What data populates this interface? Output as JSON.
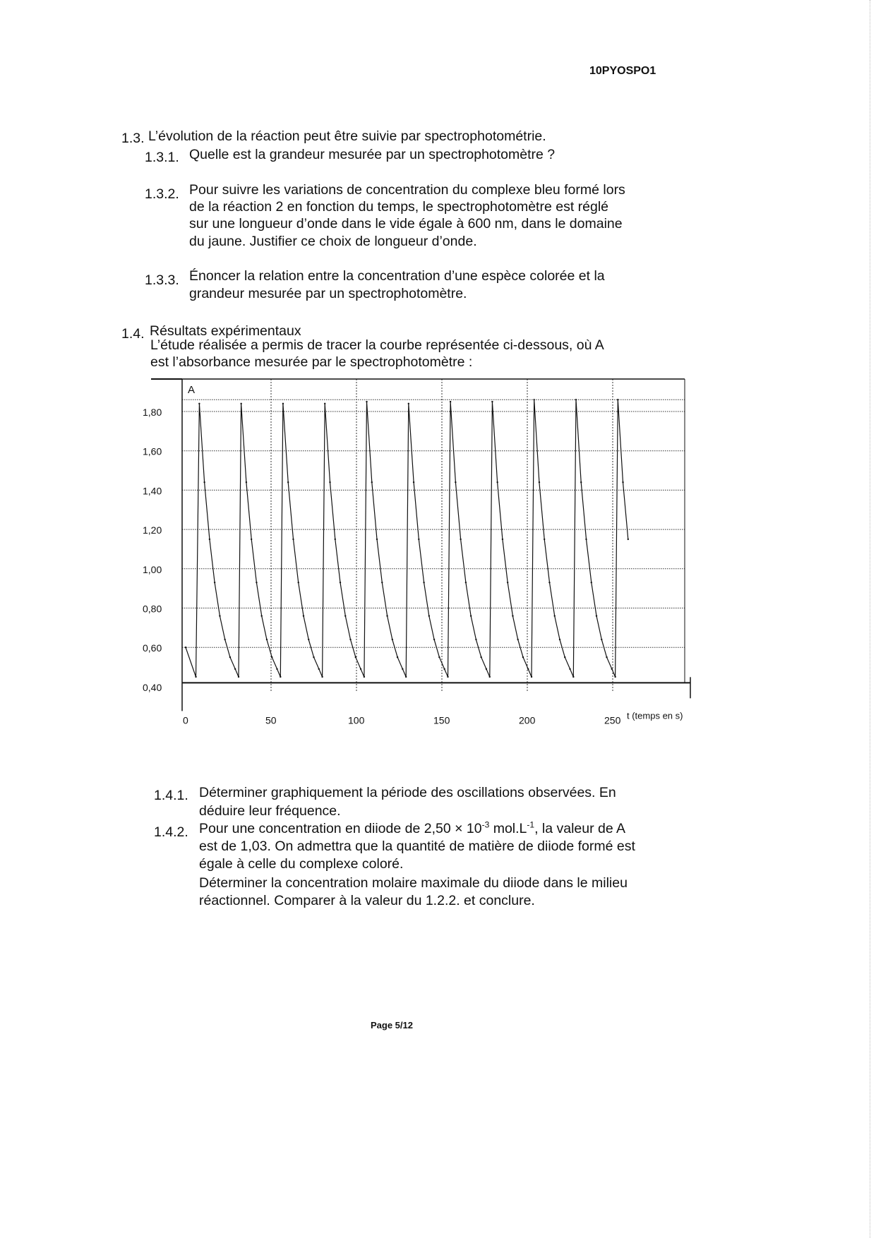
{
  "header": {
    "code": "10PYOSPO1"
  },
  "footer": {
    "page": "Page 5/12"
  },
  "sections": {
    "s13": {
      "num": "1.3.",
      "text": "L’évolution de la réaction peut être suivie par spectrophotométrie."
    },
    "s131": {
      "num": "1.3.1.",
      "lines": [
        "Quelle est la grandeur mesurée par un spectrophotomètre ?"
      ]
    },
    "s132": {
      "num": "1.3.2.",
      "lines": [
        "Pour suivre les variations de concentration du complexe bleu formé lors",
        "de la réaction 2 en fonction du temps, le spectrophotomètre est réglé",
        "sur une longueur d’onde dans le vide égale à 600 nm, dans le domaine",
        "du jaune. Justifier ce choix de longueur d’onde."
      ]
    },
    "s133": {
      "num": "1.3.3.",
      "lines": [
        "Énoncer la relation entre la concentration d’une espèce colorée et la",
        "grandeur mesurée par un spectrophotomètre."
      ]
    },
    "s14": {
      "num": "1.4.",
      "text": "Résultats expérimentaux",
      "lines": [
        "L’étude réalisée a permis de tracer la courbe représentée ci-dessous, où A",
        "est l’absorbance mesurée par le spectrophotomètre :"
      ]
    },
    "s141": {
      "num": "1.4.1.",
      "lines": [
        "Déterminer graphiquement la période des oscillations observées. En",
        "déduire leur fréquence."
      ]
    },
    "s142": {
      "num": "1.4.2.",
      "line1": {
        "a": "Pour une concentration en diiode de 2,50 × 10",
        "sup1": "-3",
        "b": " mol.L",
        "sup2": "-1",
        "c": ", la valeur de A"
      },
      "lines": [
        "est de 1,03. On admettra que la quantité de matière de diiode formé est",
        "égale à celle du complexe coloré.",
        "Déterminer la concentration molaire maximale du diiode dans le milieu",
        "réactionnel. Comparer à la valeur du 1.2.2. et conclure."
      ]
    }
  },
  "chart_data": {
    "type": "line",
    "title": "",
    "xlabel": "t (temps en s)",
    "ylabel": "A",
    "xlim": [
      0,
      292
    ],
    "ylim": [
      0.38,
      1.965
    ],
    "xticks": [
      0,
      50,
      100,
      150,
      200,
      250
    ],
    "xtick_labels": [
      "0",
      "50",
      "100",
      "150",
      "200",
      "250"
    ],
    "yticks": [
      0.4,
      0.6,
      0.8,
      1.0,
      1.2,
      1.4,
      1.6,
      1.8
    ],
    "ytick_labels": [
      "0,40",
      "0,60",
      "0,80",
      "1,00",
      "1,20",
      "1,40",
      "1,60",
      "1,80"
    ],
    "grid": "dotted",
    "line_color": "#111111",
    "points": [
      [
        0,
        0.6
      ],
      [
        6,
        0.45
      ],
      [
        8,
        1.84
      ],
      [
        11,
        1.44
      ],
      [
        14,
        1.15
      ],
      [
        17,
        0.93
      ],
      [
        20,
        0.76
      ],
      [
        23,
        0.64
      ],
      [
        26,
        0.55
      ],
      [
        29,
        0.49
      ],
      [
        31,
        0.45
      ],
      [
        32.5,
        1.84
      ],
      [
        35.5,
        1.44
      ],
      [
        38.5,
        1.15
      ],
      [
        41.5,
        0.93
      ],
      [
        44.5,
        0.76
      ],
      [
        47.5,
        0.64
      ],
      [
        50.5,
        0.55
      ],
      [
        53.5,
        0.49
      ],
      [
        55.5,
        0.45
      ],
      [
        57,
        1.84
      ],
      [
        60,
        1.44
      ],
      [
        63,
        1.15
      ],
      [
        66,
        0.93
      ],
      [
        69,
        0.76
      ],
      [
        72,
        0.64
      ],
      [
        75,
        0.55
      ],
      [
        78,
        0.49
      ],
      [
        80,
        0.45
      ],
      [
        81.5,
        1.84
      ],
      [
        84.5,
        1.44
      ],
      [
        87.5,
        1.15
      ],
      [
        90.5,
        0.93
      ],
      [
        93.5,
        0.76
      ],
      [
        96.5,
        0.64
      ],
      [
        99.5,
        0.55
      ],
      [
        102.5,
        0.49
      ],
      [
        104.5,
        0.45
      ],
      [
        106,
        1.85
      ],
      [
        109,
        1.44
      ],
      [
        112,
        1.15
      ],
      [
        115,
        0.93
      ],
      [
        118,
        0.76
      ],
      [
        121,
        0.64
      ],
      [
        124,
        0.55
      ],
      [
        127,
        0.49
      ],
      [
        129,
        0.45
      ],
      [
        130.5,
        1.84
      ],
      [
        133.5,
        1.44
      ],
      [
        136.5,
        1.15
      ],
      [
        139.5,
        0.93
      ],
      [
        142.5,
        0.76
      ],
      [
        145.5,
        0.64
      ],
      [
        148.5,
        0.55
      ],
      [
        151.5,
        0.49
      ],
      [
        153.5,
        0.45
      ],
      [
        155,
        1.85
      ],
      [
        158,
        1.44
      ],
      [
        161,
        1.15
      ],
      [
        164,
        0.93
      ],
      [
        167,
        0.76
      ],
      [
        170,
        0.64
      ],
      [
        173,
        0.55
      ],
      [
        176,
        0.49
      ],
      [
        178,
        0.45
      ],
      [
        179.5,
        1.85
      ],
      [
        182.5,
        1.44
      ],
      [
        185.5,
        1.15
      ],
      [
        188.5,
        0.93
      ],
      [
        191.5,
        0.76
      ],
      [
        194.5,
        0.64
      ],
      [
        197.5,
        0.55
      ],
      [
        200.5,
        0.49
      ],
      [
        202.5,
        0.45
      ],
      [
        204,
        1.86
      ],
      [
        207,
        1.44
      ],
      [
        210,
        1.15
      ],
      [
        213,
        0.93
      ],
      [
        216,
        0.76
      ],
      [
        219,
        0.64
      ],
      [
        222,
        0.55
      ],
      [
        225,
        0.49
      ],
      [
        227,
        0.45
      ],
      [
        228.5,
        1.86
      ],
      [
        231.5,
        1.44
      ],
      [
        234.5,
        1.15
      ],
      [
        237.5,
        0.93
      ],
      [
        240.5,
        0.76
      ],
      [
        243.5,
        0.64
      ],
      [
        246.5,
        0.55
      ],
      [
        249.5,
        0.49
      ],
      [
        251.5,
        0.45
      ],
      [
        253,
        1.86
      ],
      [
        256,
        1.44
      ],
      [
        259,
        1.15
      ]
    ]
  }
}
